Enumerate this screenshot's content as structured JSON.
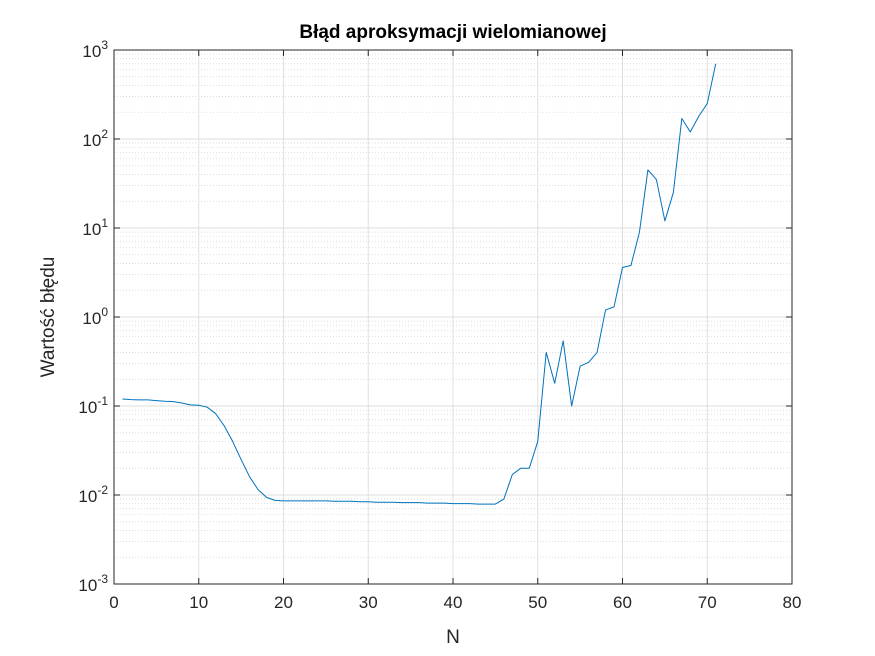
{
  "chart_data": {
    "type": "line",
    "title": "Błąd aproksymacji wielomianowej",
    "xlabel": "N",
    "ylabel": "Wartość błędu",
    "xlim": [
      0,
      80
    ],
    "ylim": [
      0.001,
      1000
    ],
    "yscale": "log",
    "grid": true,
    "minor_grid": true,
    "x_ticks": [
      0,
      10,
      20,
      30,
      40,
      50,
      60,
      70,
      80
    ],
    "y_ticks": [
      {
        "value": 0.001,
        "base": "10",
        "exp": "-3"
      },
      {
        "value": 0.01,
        "base": "10",
        "exp": "-2"
      },
      {
        "value": 0.1,
        "base": "10",
        "exp": "-1"
      },
      {
        "value": 1,
        "base": "10",
        "exp": "0"
      },
      {
        "value": 10,
        "base": "10",
        "exp": "1"
      },
      {
        "value": 100,
        "base": "10",
        "exp": "2"
      },
      {
        "value": 1000,
        "base": "10",
        "exp": "3"
      }
    ],
    "series": [
      {
        "color": "#0072bd",
        "x": [
          1,
          2,
          3,
          4,
          5,
          6,
          7,
          8,
          9,
          10,
          11,
          12,
          13,
          14,
          15,
          16,
          17,
          18,
          19,
          20,
          21,
          22,
          23,
          24,
          25,
          26,
          27,
          28,
          29,
          30,
          31,
          32,
          33,
          34,
          35,
          36,
          37,
          38,
          39,
          40,
          41,
          42,
          43,
          44,
          45,
          46,
          47,
          48,
          49,
          50,
          51,
          52,
          53,
          54,
          55,
          56,
          57,
          58,
          59,
          60,
          61,
          62,
          63,
          64,
          65,
          66,
          67,
          68,
          69,
          70,
          71
        ],
        "y": [
          0.12,
          0.118,
          0.117,
          0.117,
          0.115,
          0.113,
          0.112,
          0.108,
          0.103,
          0.102,
          0.097,
          0.082,
          0.06,
          0.04,
          0.025,
          0.016,
          0.0115,
          0.0094,
          0.0087,
          0.0086,
          0.0086,
          0.0086,
          0.0086,
          0.0086,
          0.0086,
          0.0085,
          0.0085,
          0.0085,
          0.0084,
          0.0084,
          0.0083,
          0.0083,
          0.0083,
          0.0082,
          0.0082,
          0.0082,
          0.0081,
          0.0081,
          0.0081,
          0.008,
          0.008,
          0.008,
          0.0079,
          0.0079,
          0.0079,
          0.009,
          0.017,
          0.02,
          0.02,
          0.04,
          0.4,
          0.18,
          0.54,
          0.1,
          0.28,
          0.31,
          0.4,
          1.2,
          1.3,
          3.6,
          3.8,
          9.0,
          45,
          35,
          12,
          25,
          170,
          120,
          180,
          250,
          700
        ]
      }
    ]
  }
}
